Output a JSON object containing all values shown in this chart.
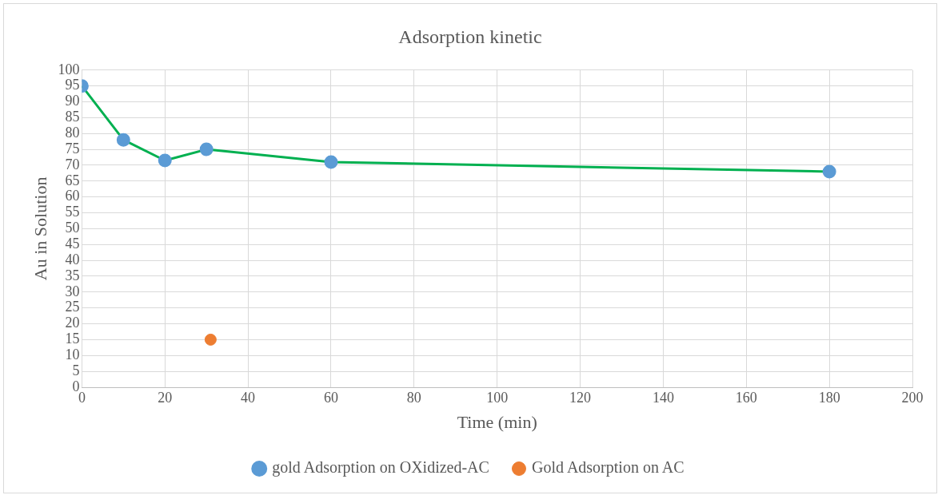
{
  "chart_data": {
    "type": "line",
    "title": "Adsorption kinetic",
    "xlabel": "Time (min)",
    "ylabel": "Au in Solution",
    "xlim": [
      0,
      200
    ],
    "xticks": [
      0,
      20,
      40,
      60,
      80,
      100,
      120,
      140,
      160,
      180,
      200
    ],
    "ylim": [
      0,
      100
    ],
    "yticks": [
      0,
      5,
      10,
      15,
      20,
      25,
      30,
      35,
      40,
      45,
      50,
      55,
      60,
      65,
      70,
      75,
      80,
      85,
      90,
      95,
      100
    ],
    "grid": true,
    "legend": "bottom",
    "marker": "circle",
    "series": [
      {
        "name": "gold Adsorption on OXidized-AC",
        "type": "line",
        "color": "#00b050",
        "colors": [
          "#5b9bd5",
          "#5b9bd5",
          "#5b9bd5",
          "#5b9bd5",
          "#5b9bd5",
          "#5b9bd5"
        ],
        "x": [
          0,
          10,
          20,
          30,
          60,
          180
        ],
        "values": [
          95,
          78,
          71.5,
          75,
          71,
          68
        ]
      },
      {
        "name": "Gold Adsorption on AC",
        "type": "scatter",
        "color": "#ed7d31",
        "x": [
          31
        ],
        "values": [
          15
        ]
      }
    ]
  }
}
